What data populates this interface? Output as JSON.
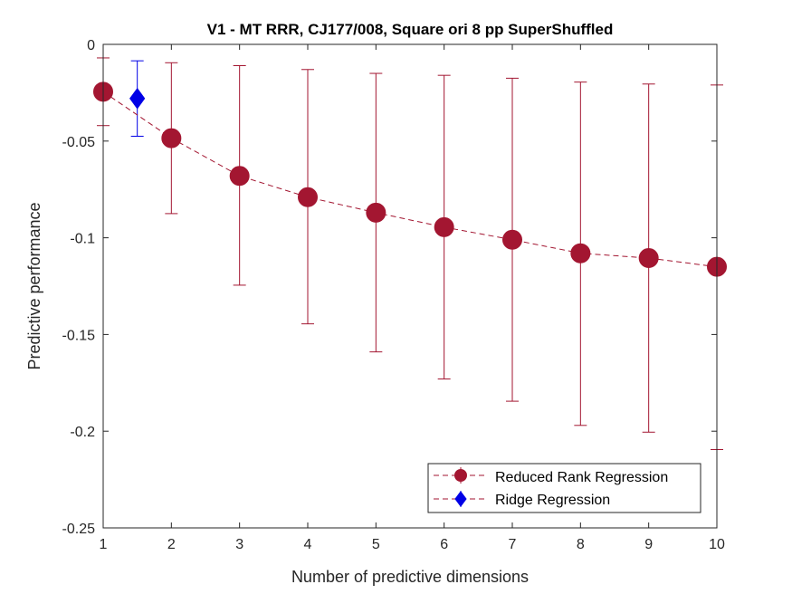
{
  "chart_data": {
    "type": "line",
    "title": "V1 - MT RRR, CJ177/008, Square ori 8 pp  SuperShuffled",
    "xlabel": "Number of predictive dimensions",
    "ylabel": "Predictive performance",
    "xlim": [
      1,
      10
    ],
    "ylim": [
      -0.25,
      0
    ],
    "xticks": [
      1,
      2,
      3,
      4,
      5,
      6,
      7,
      8,
      9,
      10
    ],
    "xtick_labels": [
      "1",
      "2",
      "3",
      "4",
      "5",
      "6",
      "7",
      "8",
      "9",
      "10"
    ],
    "yticks": [
      0,
      -0.05,
      -0.1,
      -0.15,
      -0.2,
      -0.25
    ],
    "ytick_labels": [
      "0",
      "-0.05",
      "-0.1",
      "-0.15",
      "-0.2",
      "-0.25"
    ],
    "grid": false,
    "legend_position": "bottom-right",
    "series": [
      {
        "name": "Reduced Rank Regression",
        "color": "#a31631",
        "marker": "circle",
        "line_style": "dashed",
        "x": [
          1,
          2,
          3,
          4,
          5,
          6,
          7,
          8,
          9,
          10
        ],
        "y": [
          -0.0245,
          -0.0485,
          -0.068,
          -0.079,
          -0.087,
          -0.0945,
          -0.101,
          -0.108,
          -0.1105,
          -0.115
        ],
        "err_low": [
          -0.042,
          -0.0875,
          -0.1245,
          -0.1445,
          -0.159,
          -0.173,
          -0.1845,
          -0.197,
          -0.2005,
          -0.2095
        ],
        "err_high": [
          -0.007,
          -0.0095,
          -0.011,
          -0.013,
          -0.015,
          -0.016,
          -0.0175,
          -0.0195,
          -0.0205,
          -0.021
        ]
      },
      {
        "name": "Ridge Regression",
        "color": "#0000e6",
        "marker": "diamond",
        "line_style": "none",
        "x": [
          1.5
        ],
        "y": [
          -0.028
        ],
        "err_low": [
          -0.0475
        ],
        "err_high": [
          -0.0085
        ]
      }
    ]
  }
}
